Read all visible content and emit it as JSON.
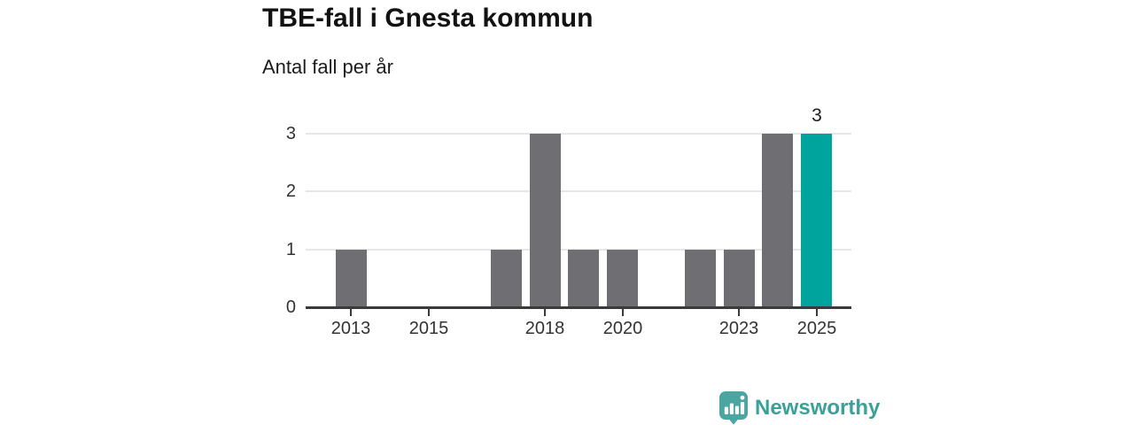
{
  "header": {
    "title": "TBE-fall i Gnesta kommun",
    "subtitle": "Antal fall per år"
  },
  "chart_data": {
    "type": "bar",
    "title": "TBE-fall i Gnesta kommun",
    "subtitle": "Antal fall per år",
    "xlabel": "",
    "ylabel": "",
    "categories": [
      "2013",
      "2014",
      "2015",
      "2016",
      "2017",
      "2018",
      "2019",
      "2020",
      "2021",
      "2022",
      "2023",
      "2024",
      "2025"
    ],
    "values": [
      1,
      0,
      0,
      0,
      1,
      3,
      1,
      1,
      0,
      1,
      1,
      3,
      3
    ],
    "ylim": [
      0,
      3
    ],
    "y_ticks": [
      0,
      1,
      2,
      3
    ],
    "x_tick_labels": [
      "2013",
      "2015",
      "2018",
      "2020",
      "2023",
      "2025"
    ],
    "grid": "horizontal",
    "legend_position": "none",
    "bar_color": "#6e6e73",
    "axis_color": "#3a3a3a",
    "gridline_color": "#e6e6e6",
    "highlight": {
      "category": "2025",
      "color": "#00a49c",
      "value_label": "3"
    }
  },
  "branding": {
    "logo_text": "Newsworthy",
    "logo_icon": "bar-chart-speech-bubble-icon",
    "logo_color": "#3aa099",
    "logo_icon_color": "#4ba5a0"
  }
}
